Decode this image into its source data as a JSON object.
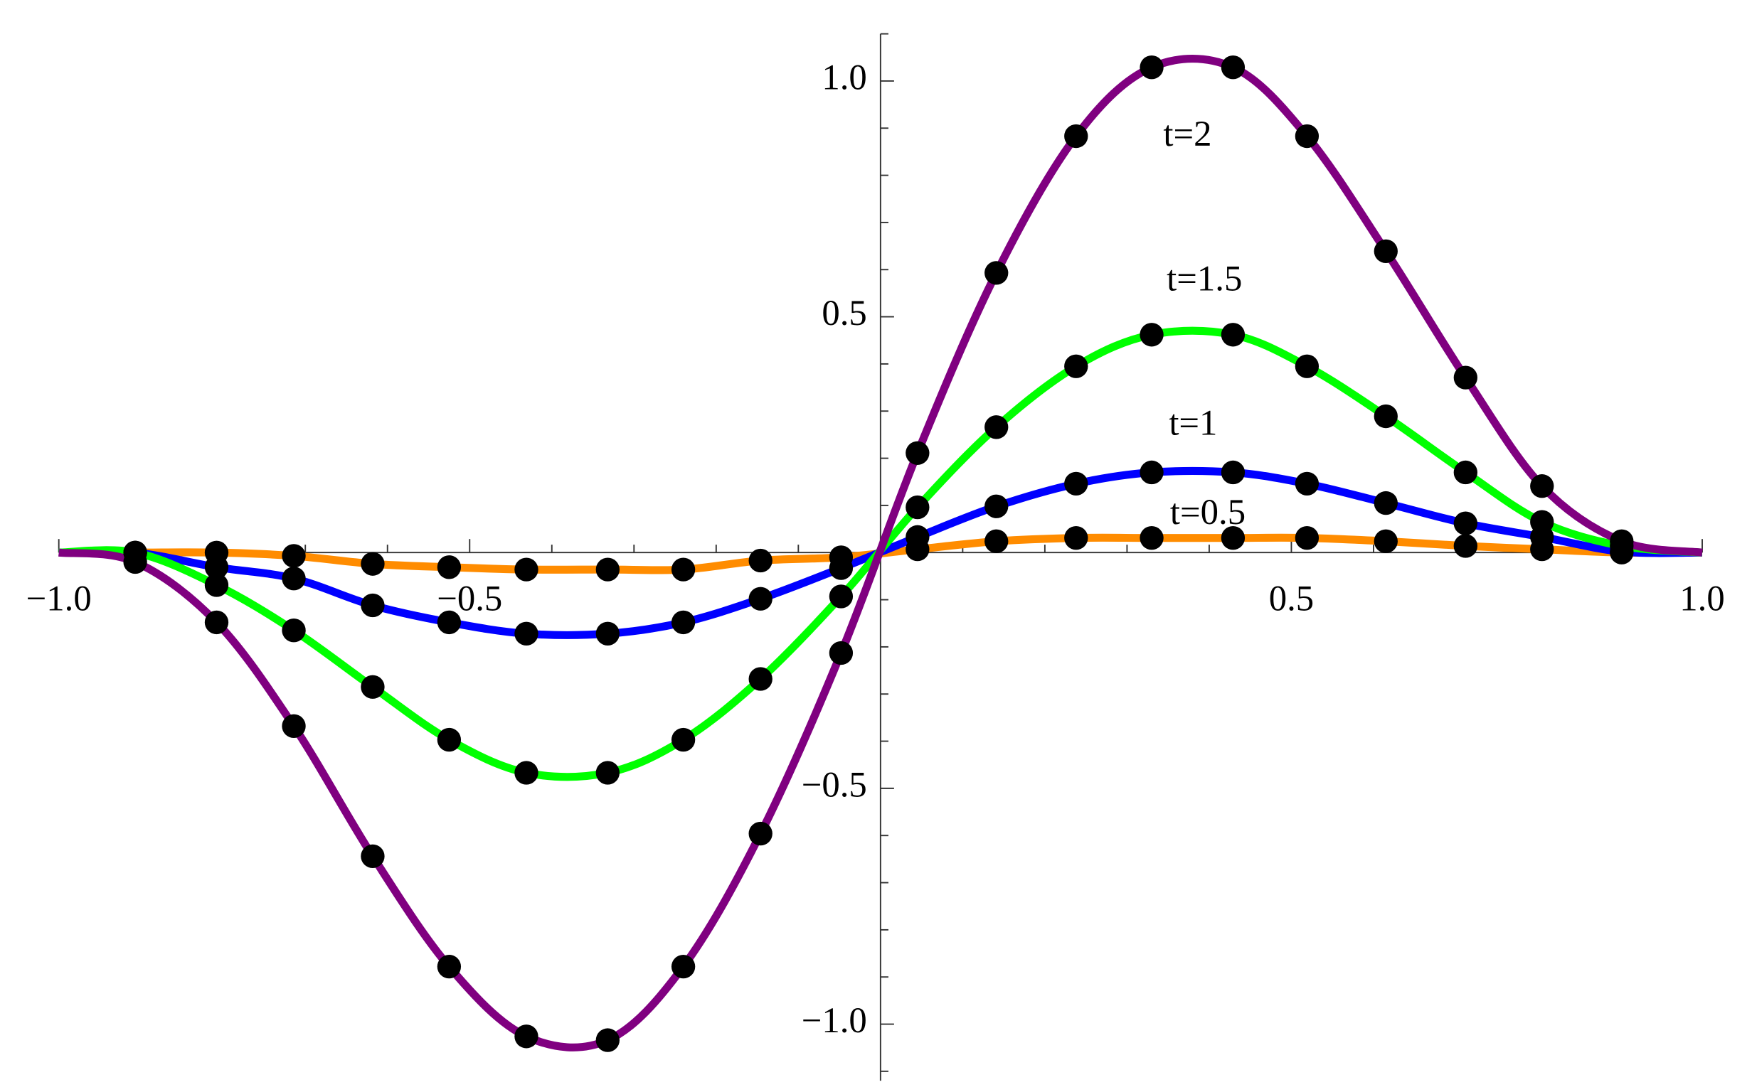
{
  "chart_data": {
    "type": "line",
    "xlim": [
      -1,
      1
    ],
    "ylim": [
      -1.12,
      1.1
    ],
    "xticks": [
      {
        "value": -1,
        "label": "−1.0"
      },
      {
        "value": -0.5,
        "label": "−0.5"
      },
      {
        "value": 0.5,
        "label": "0.5"
      },
      {
        "value": 1,
        "label": "1.0"
      }
    ],
    "yticks": [
      {
        "value": -1,
        "label": "−1.0"
      },
      {
        "value": -0.5,
        "label": "−0.5"
      },
      {
        "value": 0.5,
        "label": "0.5"
      },
      {
        "value": 1,
        "label": "1.0"
      }
    ],
    "xticks_minor": [
      -0.9,
      -0.8,
      -0.7,
      -0.6,
      -0.4,
      -0.3,
      -0.2,
      -0.1,
      0.1,
      0.2,
      0.3,
      0.4,
      0.6,
      0.7,
      0.8,
      0.9
    ],
    "yticks_minor": [
      -1.1,
      -0.9,
      -0.8,
      -0.7,
      -0.6,
      -0.4,
      -0.3,
      -0.2,
      -0.1,
      0.1,
      0.2,
      0.3,
      0.4,
      0.6,
      0.7,
      0.8,
      0.9,
      1.1
    ],
    "x": [
      -1,
      -0.907,
      -0.808,
      -0.714,
      -0.618,
      -0.525,
      -0.431,
      -0.332,
      -0.24,
      -0.146,
      -0.048,
      0.045,
      0.141,
      0.238,
      0.33,
      0.429,
      0.519,
      0.615,
      0.712,
      0.805,
      0.902,
      1
    ],
    "series": [
      {
        "name": "t=0.5",
        "color": "#ff8c00",
        "values": [
          0,
          0,
          0,
          -0.007,
          -0.024,
          -0.031,
          -0.036,
          -0.036,
          -0.036,
          -0.017,
          -0.01,
          0.007,
          0.024,
          0.031,
          0.031,
          0.031,
          0.031,
          0.024,
          0.014,
          0.007,
          0,
          0
        ]
      },
      {
        "name": "t=1",
        "color": "#0000ff",
        "values": [
          0,
          0,
          -0.031,
          -0.055,
          -0.112,
          -0.148,
          -0.172,
          -0.172,
          -0.148,
          -0.098,
          -0.033,
          0.033,
          0.098,
          0.146,
          0.17,
          0.17,
          0.146,
          0.105,
          0.062,
          0.033,
          0.002,
          0
        ]
      },
      {
        "name": "t=1.5",
        "color": "#00ff00",
        "values": [
          0,
          0,
          -0.069,
          -0.165,
          -0.285,
          -0.397,
          -0.467,
          -0.467,
          -0.397,
          -0.268,
          -0.093,
          0.096,
          0.266,
          0.395,
          0.462,
          0.462,
          0.395,
          0.289,
          0.17,
          0.065,
          0.014,
          0
        ]
      },
      {
        "name": "t=2",
        "color": "#800080",
        "values": [
          0,
          -0.02,
          -0.148,
          -0.368,
          -0.644,
          -0.878,
          -1.026,
          -1.034,
          -0.878,
          -0.596,
          -0.213,
          0.211,
          0.593,
          0.883,
          1.029,
          1.029,
          0.883,
          0.639,
          0.371,
          0.141,
          0.024,
          0
        ]
      }
    ],
    "marker_color": "#000000"
  }
}
